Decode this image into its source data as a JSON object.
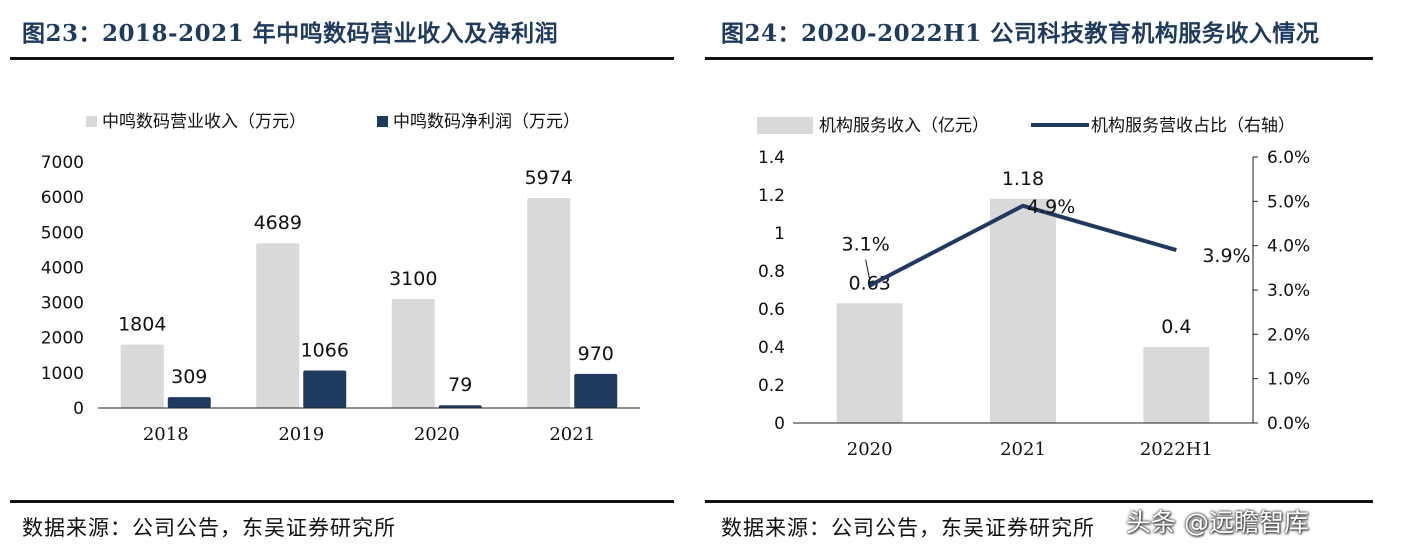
{
  "charts": [
    {
      "title": "图23：2018-2021 年中鸣数码营业收入及净利润",
      "source": "数据来源：公司公告，东吴证券研究所",
      "colors": {
        "revenue": "#d9d9d9",
        "profit": "#1f3a5f"
      },
      "chart_data": {
        "type": "bar",
        "categories": [
          "2018",
          "2019",
          "2020",
          "2021"
        ],
        "series": [
          {
            "name": "中鸣数码营业收入（万元）",
            "values": [
              1804,
              4689,
              3100,
              5974
            ]
          },
          {
            "name": "中鸣数码净利润（万元）",
            "values": [
              309,
              1066,
              79,
              970
            ]
          }
        ],
        "ylim": [
          0,
          7000
        ],
        "yticks": [
          "0",
          "1000",
          "2000",
          "3000",
          "4000",
          "5000",
          "6000",
          "7000"
        ],
        "legend": "top",
        "grid": false
      }
    },
    {
      "title": "图24：2020-2022H1 公司科技教育机构服务收入情况",
      "source": "数据来源：公司公告，东吴证券研究所",
      "colors": {
        "revenue": "#d9d9d9",
        "share": "#1f3a5f"
      },
      "chart_data": {
        "type": "bar",
        "categories": [
          "2020",
          "2021",
          "2022H1"
        ],
        "series": [
          {
            "name": "机构服务收入（亿元）",
            "type": "bar",
            "axis": "left",
            "values": [
              0.63,
              1.18,
              0.4
            ],
            "labels": [
              "0.63",
              "1.18",
              "0.4"
            ]
          },
          {
            "name": "机构服务营收占比（右轴）",
            "type": "line",
            "axis": "right",
            "values": [
              3.1,
              4.9,
              3.9
            ],
            "labels": [
              "3.1%",
              "4.9%",
              "3.9%"
            ]
          }
        ],
        "ylim": [
          0,
          1.4
        ],
        "yticks": [
          "0",
          "0.2",
          "0.4",
          "0.6",
          "0.8",
          "1",
          "1.2",
          "1.4"
        ],
        "y2lim": [
          0,
          6
        ],
        "y2ticks": [
          "0.0%",
          "1.0%",
          "2.0%",
          "3.0%",
          "4.0%",
          "5.0%",
          "6.0%"
        ],
        "legend": "top",
        "grid": false
      }
    }
  ],
  "watermark": "头条 @远瞻智库"
}
